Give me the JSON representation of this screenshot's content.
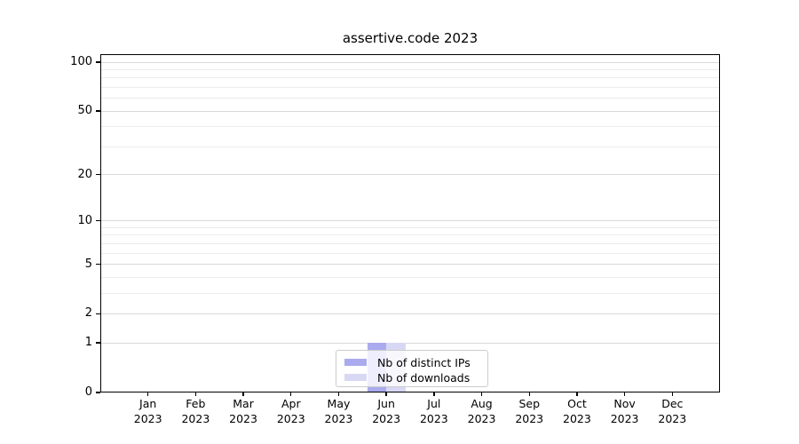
{
  "chart_data": {
    "type": "bar",
    "title": "assertive.code 2023",
    "categories": [
      "Jan 2023",
      "Feb 2023",
      "Mar 2023",
      "Apr 2023",
      "May 2023",
      "Jun 2023",
      "Jul 2023",
      "Aug 2023",
      "Sep 2023",
      "Oct 2023",
      "Nov 2023",
      "Dec 2023"
    ],
    "series": [
      {
        "name": "Nb of distinct IPs",
        "color": "#aaaaee",
        "values": [
          0,
          0,
          0,
          0,
          0,
          1,
          0,
          0,
          0,
          0,
          0,
          0
        ]
      },
      {
        "name": "Nb of downloads",
        "color": "#d8d8f5",
        "values": [
          0,
          0,
          0,
          0,
          0,
          1,
          0,
          0,
          0,
          0,
          0,
          0
        ]
      }
    ],
    "xlabel": "",
    "ylabel": "",
    "ylim": [
      0,
      100
    ],
    "y_scale": "log10(1+x)",
    "y_major_ticks": [
      0,
      1,
      2,
      5,
      10,
      20,
      50,
      100
    ],
    "y_minor_gridlines": [
      3,
      4,
      6,
      7,
      8,
      9,
      30,
      40,
      60,
      70,
      80,
      90
    ],
    "grid": "horizontal",
    "legend_position": "lower-center",
    "colors": {
      "axis": "#000000",
      "major_grid": "#d9d9d9",
      "minor_grid": "#ececec",
      "text": "#000000",
      "background": "#ffffff"
    }
  }
}
